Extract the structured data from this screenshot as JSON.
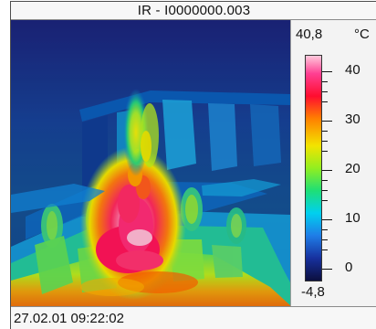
{
  "window": {
    "title": "IR - I0000000.003"
  },
  "scale": {
    "max_value": "40,8",
    "unit": "°C",
    "labels": [
      "40",
      "30",
      "20",
      "10",
      "0"
    ],
    "min_value": "-4,8"
  },
  "status": {
    "timestamp": "27.02.01 09:22:02"
  },
  "colors": {
    "background": "#f6f6f6",
    "thermal_cold": "#17319e",
    "thermal_hot": "#ff0d2f",
    "thermal_peak": "#ffc9dc"
  }
}
